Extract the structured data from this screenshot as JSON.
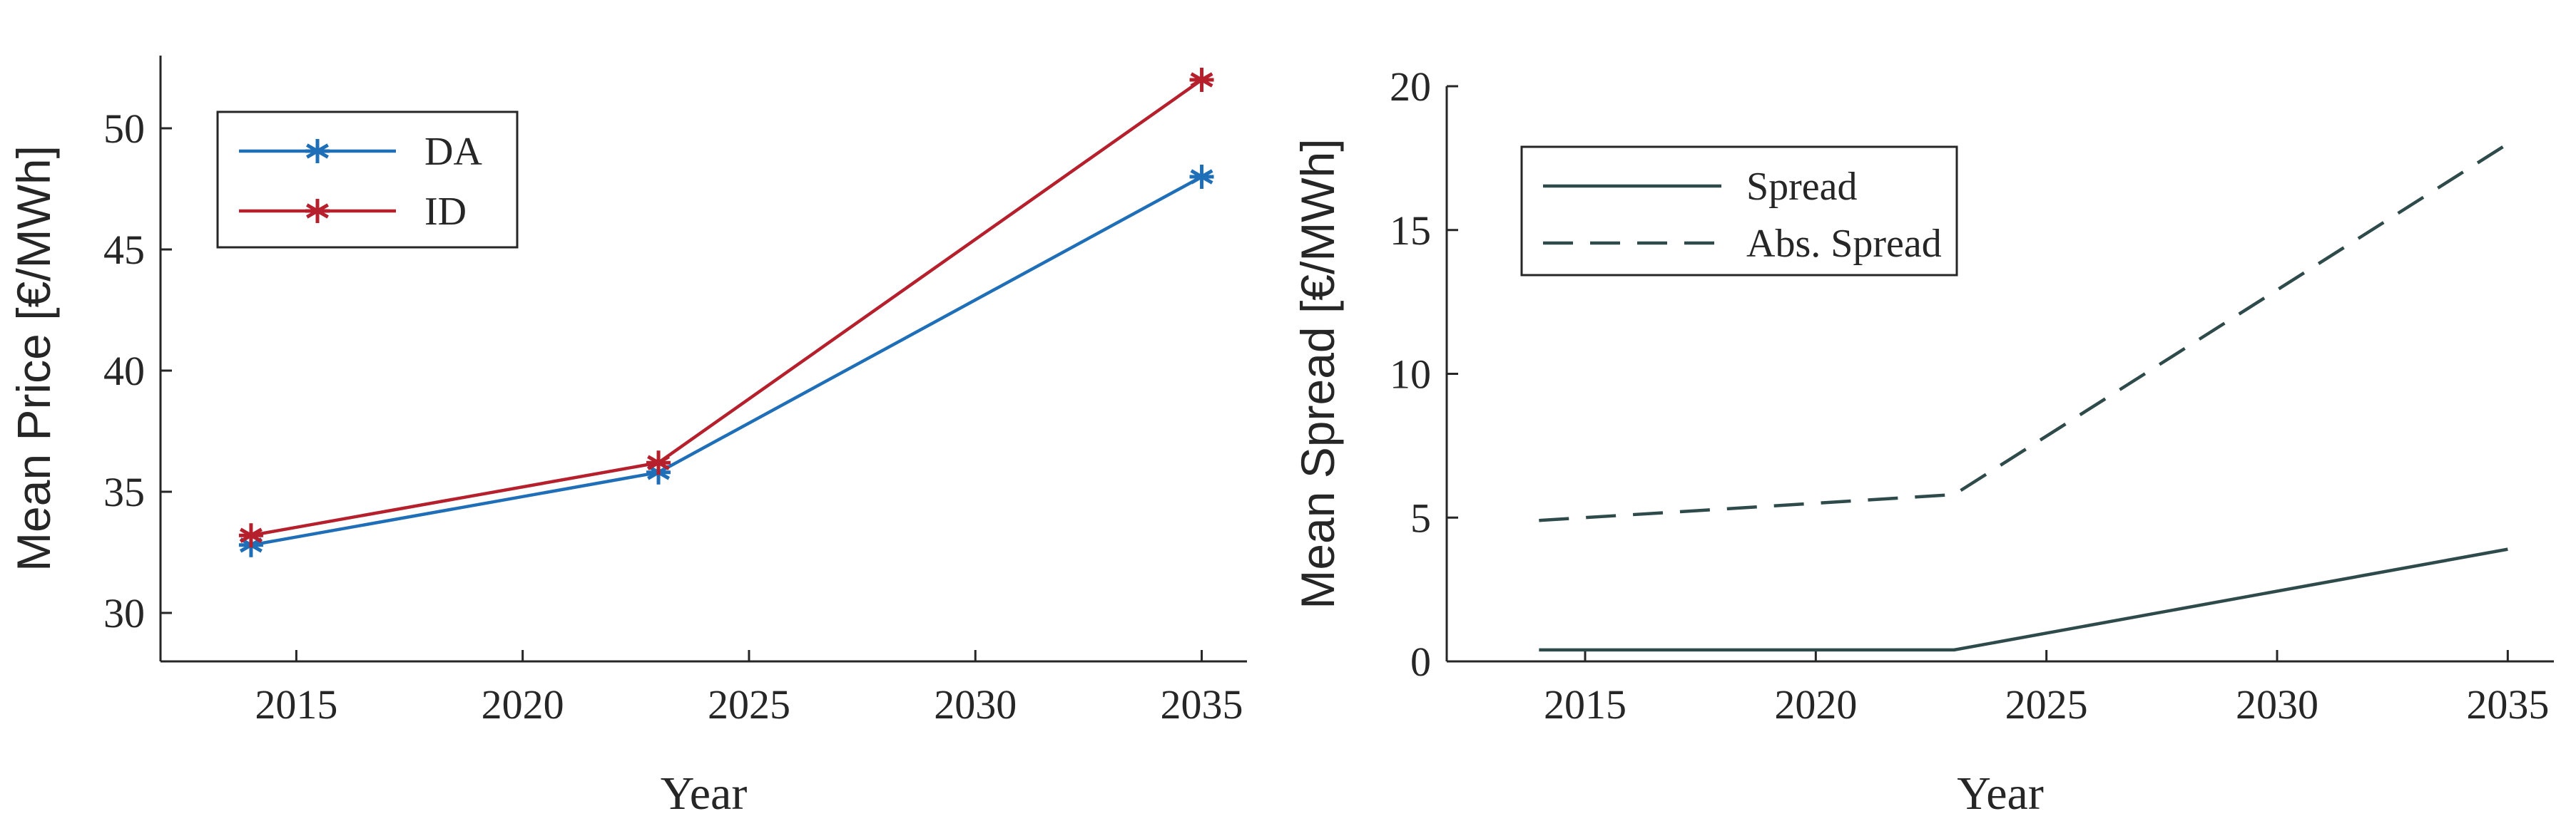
{
  "chart_data": [
    {
      "type": "line",
      "xlabel": "Year",
      "ylabel": "Mean Price [€/MWh]",
      "xlim": [
        2012,
        2036
      ],
      "ylim": [
        28,
        53
      ],
      "xticks": [
        2015,
        2020,
        2025,
        2030,
        2035
      ],
      "yticks": [
        30,
        35,
        40,
        45,
        50
      ],
      "x": [
        2014,
        2023,
        2035
      ],
      "grid": false,
      "legend_position": "top-left",
      "series": [
        {
          "name": "DA",
          "values": [
            32.8,
            35.8,
            48.0
          ],
          "color": "#1f6fb8",
          "style": "solid",
          "marker": "asterisk"
        },
        {
          "name": "ID",
          "values": [
            33.2,
            36.2,
            52.0
          ],
          "color": "#b5202c",
          "style": "solid",
          "marker": "asterisk"
        }
      ]
    },
    {
      "type": "line",
      "xlabel": "Year",
      "ylabel": "Mean Spread [€/MWh]",
      "xlim": [
        2012,
        2036
      ],
      "ylim": [
        0,
        20
      ],
      "xticks": [
        2015,
        2020,
        2025,
        2030,
        2035
      ],
      "yticks": [
        0,
        5,
        10,
        15,
        20
      ],
      "x": [
        2014,
        2023,
        2035
      ],
      "grid": false,
      "legend_position": "top-left",
      "series": [
        {
          "name": "Spread",
          "values": [
            0.4,
            0.4,
            3.9
          ],
          "color": "#2e4a4a",
          "style": "solid"
        },
        {
          "name": "Abs. Spread",
          "values": [
            4.9,
            5.8,
            18.0
          ],
          "color": "#2e4a4a",
          "style": "dashed"
        }
      ]
    }
  ]
}
